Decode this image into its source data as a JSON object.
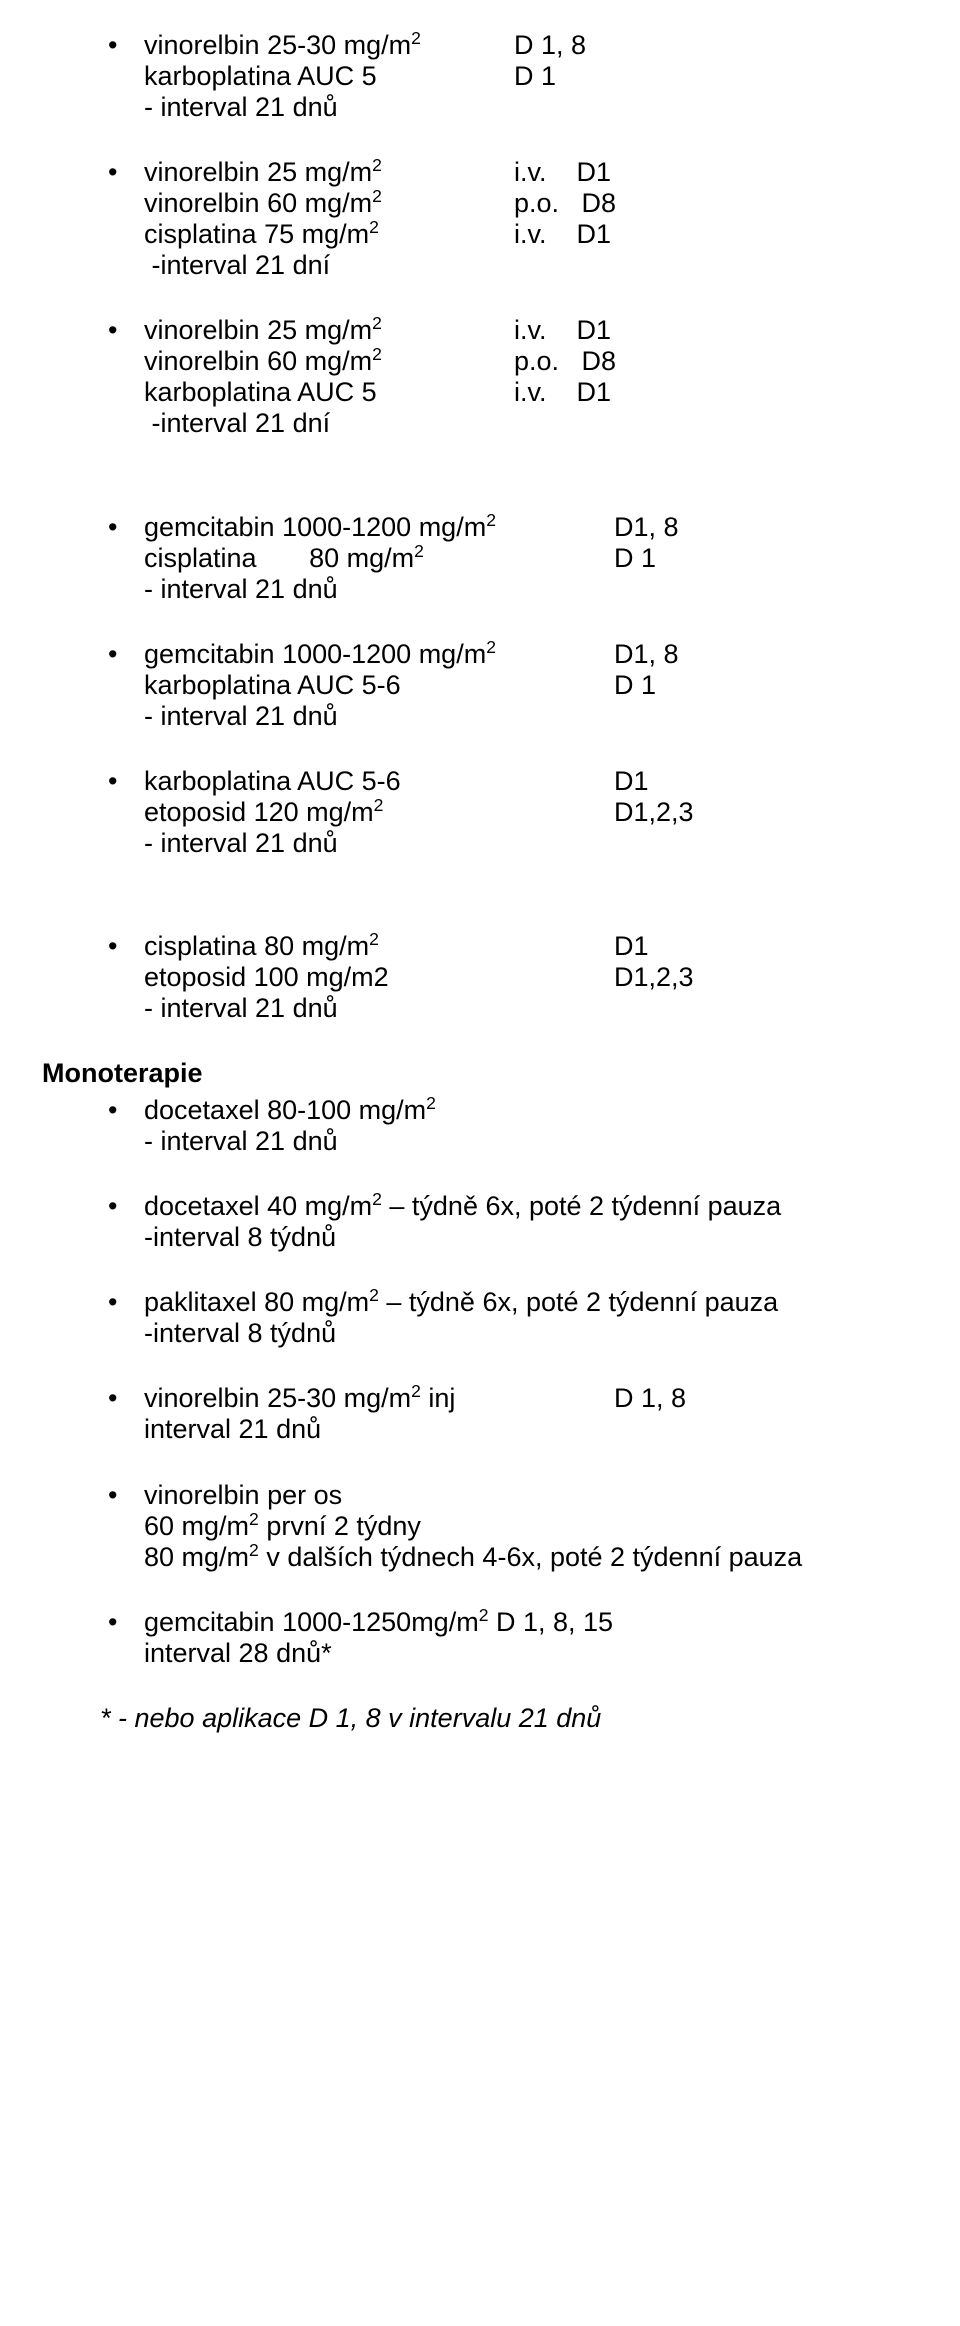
{
  "items": [
    {
      "type": "bullet",
      "lines": [
        {
          "drug_html": "vinorelbin 25-30 mg/m<sup>2</sup>",
          "sched": "D 1, 8",
          "col": "w1"
        },
        {
          "drug_html": "karboplatina AUC 5",
          "sched": "D 1",
          "col": "w1"
        },
        {
          "drug_html": "- interval 21 dnů"
        }
      ]
    },
    {
      "type": "bullet",
      "lines": [
        {
          "drug_html": "vinorelbin 25 mg/m<sup>2</sup>",
          "sched": "i.v.    D1",
          "col": "w1"
        },
        {
          "drug_html": "vinorelbin 60 mg/m<sup>2</sup>",
          "sched": "p.o.   D8",
          "col": "w1"
        },
        {
          "drug_html": "cisplatina 75 mg/m<sup>2</sup>",
          "sched": "i.v.    D1",
          "col": "w1"
        },
        {
          "drug_html": "&nbsp;-interval 21 dní"
        }
      ]
    },
    {
      "type": "bullet",
      "lines": [
        {
          "drug_html": "vinorelbin 25 mg/m<sup>2</sup>",
          "sched": "i.v.    D1",
          "col": "w1"
        },
        {
          "drug_html": "vinorelbin 60 mg/m<sup>2</sup>",
          "sched": "p.o.   D8",
          "col": "w1"
        },
        {
          "drug_html": "karboplatina AUC 5",
          "sched": "i.v.    D1",
          "col": "w1"
        },
        {
          "drug_html": "&nbsp;-interval 21 dní"
        }
      ]
    },
    {
      "type": "gap"
    },
    {
      "type": "bullet",
      "lines": [
        {
          "drug_html": "gemcitabin 1000-1200 mg/m<sup>2</sup>",
          "sched": "D1, 8",
          "col": "w2"
        },
        {
          "drug_html": "cisplatina&nbsp;&nbsp;&nbsp;&nbsp;&nbsp;&nbsp;&nbsp;80 mg/m<sup>2</sup>",
          "sched": "D 1",
          "col": "w2"
        },
        {
          "drug_html": "- interval 21 dnů"
        }
      ]
    },
    {
      "type": "bullet",
      "lines": [
        {
          "drug_html": "gemcitabin 1000-1200 mg/m<sup>2</sup>",
          "sched": "D1, 8",
          "col": "w2"
        },
        {
          "drug_html": "karboplatina AUC 5-6",
          "sched": "D 1",
          "col": "w2"
        },
        {
          "drug_html": "- interval 21 dnů"
        }
      ]
    },
    {
      "type": "bullet",
      "lines": [
        {
          "drug_html": "karboplatina AUC 5-6",
          "sched": "D1",
          "col": "w2"
        },
        {
          "drug_html": "etoposid 120 mg/m<sup>2</sup>",
          "sched": "D1,2,3",
          "col": "w2"
        },
        {
          "drug_html": "- interval 21 dnů"
        }
      ]
    },
    {
      "type": "gap"
    },
    {
      "type": "bullet",
      "lines": [
        {
          "drug_html": "cisplatina 80 mg/m<sup>2</sup>",
          "sched": "D1",
          "col": "w2"
        },
        {
          "drug_html": "etoposid 100 mg/m2",
          "sched": "D1,2,3",
          "col": "w2"
        },
        {
          "drug_html": "- interval 21 dnů"
        }
      ]
    },
    {
      "type": "heading",
      "text": "Monoterapie"
    },
    {
      "type": "bullet",
      "lines": [
        {
          "drug_html": "docetaxel 80-100 mg/m<sup>2</sup>"
        },
        {
          "drug_html": "- interval 21 dnů"
        }
      ]
    },
    {
      "type": "bullet",
      "lines": [
        {
          "drug_html": "docetaxel 40 mg/m<sup>2</sup> – týdně 6x, poté 2 týdenní pauza"
        },
        {
          "drug_html": "-interval 8 týdnů"
        }
      ]
    },
    {
      "type": "bullet",
      "lines": [
        {
          "drug_html": "paklitaxel 80 mg/m<sup>2</sup> – týdně 6x, poté 2 týdenní pauza"
        },
        {
          "drug_html": "-interval 8 týdnů"
        }
      ]
    },
    {
      "type": "bullet",
      "lines": [
        {
          "drug_html": "vinorelbin 25-30 mg/m<sup>2</sup> inj",
          "sched": "D 1, 8",
          "col": "w2"
        },
        {
          "drug_html": "interval 21 dnů"
        }
      ]
    },
    {
      "type": "bullet",
      "lines": [
        {
          "drug_html": "vinorelbin per os"
        },
        {
          "drug_html": "60 mg/m<sup>2</sup> první 2 týdny"
        },
        {
          "drug_html": "80 mg/m<sup>2</sup> v dalších týdnech 4-6x, poté 2 týdenní pauza"
        }
      ]
    },
    {
      "type": "bullet",
      "lines": [
        {
          "drug_html": "gemcitabin 1000-1250mg/m<sup>2</sup> D 1, 8, 15"
        },
        {
          "drug_html": "interval 28 dnů*"
        }
      ]
    }
  ],
  "footnote": "* - nebo aplikace D 1, 8 v intervalu 21 dnů"
}
